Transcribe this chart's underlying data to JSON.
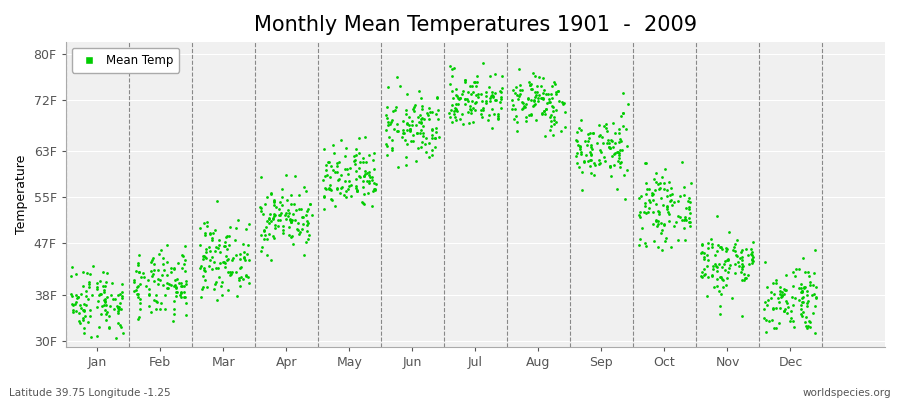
{
  "title": "Monthly Mean Temperatures 1901  -  2009",
  "ylabel": "Temperature",
  "xlabel_months": [
    "Jan",
    "Feb",
    "Mar",
    "Apr",
    "May",
    "Jun",
    "Jul",
    "Aug",
    "Sep",
    "Oct",
    "Nov",
    "Dec"
  ],
  "yticks": [
    30,
    38,
    47,
    55,
    63,
    72,
    80
  ],
  "ytick_labels": [
    "30F",
    "38F",
    "47F",
    "55F",
    "63F",
    "72F",
    "80F"
  ],
  "ylim": [
    29,
    82
  ],
  "xlim": [
    -0.5,
    12.5
  ],
  "dot_color": "#00CC00",
  "background_color": "#F0F0F0",
  "fig_color": "#FFFFFF",
  "title_fontsize": 15,
  "axis_fontsize": 9,
  "legend_label": "Mean Temp",
  "bottom_left_text": "Latitude 39.75 Longitude -1.25",
  "bottom_right_text": "worldspecies.org",
  "years": 109,
  "monthly_mean_temps_F": [
    37.0,
    39.5,
    44.5,
    51.5,
    58.0,
    67.0,
    72.0,
    71.5,
    63.5,
    53.0,
    43.5,
    37.5
  ],
  "monthly_std_temps_F": [
    3.2,
    3.0,
    3.2,
    2.8,
    3.0,
    3.0,
    2.5,
    2.5,
    3.0,
    3.0,
    3.0,
    3.2
  ]
}
